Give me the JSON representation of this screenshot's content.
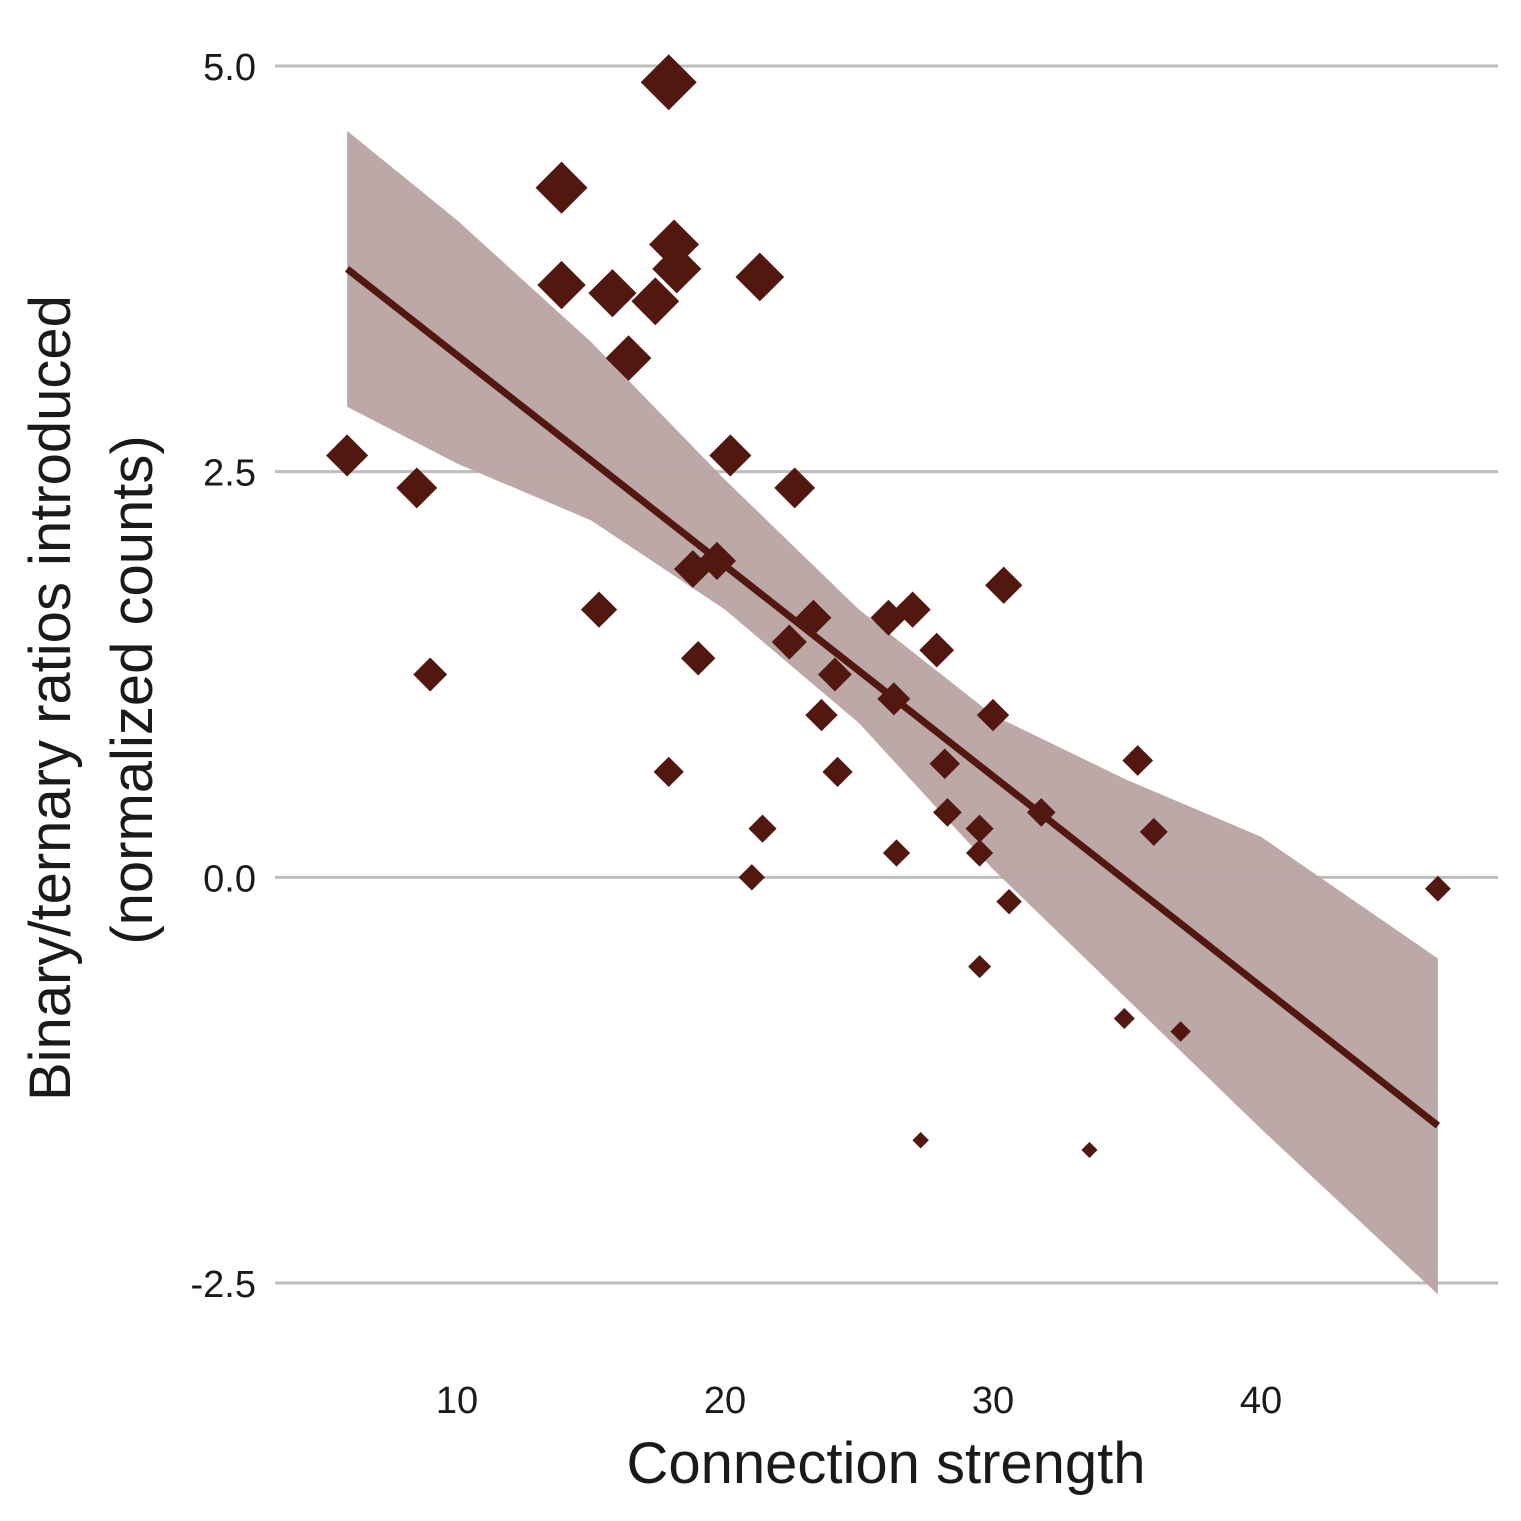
{
  "colors": {
    "points": "#521810",
    "fit_line": "#521810",
    "ribbon": "#b9a3a3",
    "gridline": "#bdbdbd",
    "text": "#1a1a1a"
  },
  "chart_data": {
    "type": "scatter",
    "title": "",
    "xlabel": "Connection strength",
    "ylabel_lines": [
      "Binary/ternary ratios introduced",
      "(normalized counts)"
    ],
    "xlim": [
      4,
      48
    ],
    "ylim": [
      -3,
      5.2
    ],
    "x_ticks": [
      10,
      20,
      30,
      40
    ],
    "x_tick_labels": [
      "10",
      "20",
      "30",
      "40"
    ],
    "y_ticks": [
      5.0,
      2.5,
      0.0,
      -2.5
    ],
    "y_tick_labels": [
      "5.0",
      "2.5",
      "0.0",
      "-2.5"
    ],
    "grid": "horizontal",
    "legend": "none",
    "point_shape": "diamond",
    "size_note": "point size varies with y value",
    "points": [
      {
        "x": 5.9,
        "y": 2.6
      },
      {
        "x": 8.5,
        "y": 2.4
      },
      {
        "x": 9.0,
        "y": 1.25
      },
      {
        "x": 13.9,
        "y": 4.25
      },
      {
        "x": 13.9,
        "y": 3.65
      },
      {
        "x": 15.3,
        "y": 1.65
      },
      {
        "x": 15.8,
        "y": 3.6
      },
      {
        "x": 16.4,
        "y": 3.2
      },
      {
        "x": 17.4,
        "y": 3.55
      },
      {
        "x": 17.9,
        "y": 4.9
      },
      {
        "x": 18.1,
        "y": 3.9
      },
      {
        "x": 18.2,
        "y": 3.75
      },
      {
        "x": 17.9,
        "y": 0.65
      },
      {
        "x": 18.8,
        "y": 1.9
      },
      {
        "x": 19.0,
        "y": 1.35
      },
      {
        "x": 19.7,
        "y": 1.95
      },
      {
        "x": 20.2,
        "y": 2.6
      },
      {
        "x": 21.3,
        "y": 3.7
      },
      {
        "x": 21.0,
        "y": 0.0
      },
      {
        "x": 21.4,
        "y": 0.3
      },
      {
        "x": 22.4,
        "y": 1.45
      },
      {
        "x": 22.6,
        "y": 2.4
      },
      {
        "x": 23.3,
        "y": 1.6
      },
      {
        "x": 23.6,
        "y": 1.0
      },
      {
        "x": 24.1,
        "y": 1.25
      },
      {
        "x": 24.2,
        "y": 0.65
      },
      {
        "x": 26.1,
        "y": 1.6
      },
      {
        "x": 26.3,
        "y": 1.1
      },
      {
        "x": 26.4,
        "y": 0.15
      },
      {
        "x": 27.0,
        "y": 1.65
      },
      {
        "x": 27.3,
        "y": -1.62
      },
      {
        "x": 27.9,
        "y": 1.4
      },
      {
        "x": 28.3,
        "y": 0.4
      },
      {
        "x": 28.2,
        "y": 0.7
      },
      {
        "x": 29.5,
        "y": 0.3
      },
      {
        "x": 29.5,
        "y": 0.15
      },
      {
        "x": 29.5,
        "y": -0.55
      },
      {
        "x": 30.0,
        "y": 1.0
      },
      {
        "x": 30.4,
        "y": 1.8
      },
      {
        "x": 30.6,
        "y": -0.15
      },
      {
        "x": 31.8,
        "y": 0.4
      },
      {
        "x": 33.6,
        "y": -1.68
      },
      {
        "x": 34.9,
        "y": -0.87
      },
      {
        "x": 35.4,
        "y": 0.72
      },
      {
        "x": 36.0,
        "y": 0.28
      },
      {
        "x": 37.0,
        "y": -0.95
      },
      {
        "x": 46.6,
        "y": -0.07
      }
    ],
    "fit_line": {
      "x": [
        5.9,
        46.6
      ],
      "y": [
        3.75,
        -1.53
      ]
    },
    "confidence_band": {
      "x": [
        5.9,
        10,
        15,
        20,
        25,
        30,
        35,
        40,
        46.6
      ],
      "upper": [
        4.6,
        4.05,
        3.3,
        2.45,
        1.65,
        1.0,
        0.6,
        0.25,
        -0.5
      ],
      "lower": [
        2.9,
        2.55,
        2.2,
        1.65,
        0.95,
        0.05,
        -0.75,
        -1.55,
        -2.57
      ]
    }
  }
}
